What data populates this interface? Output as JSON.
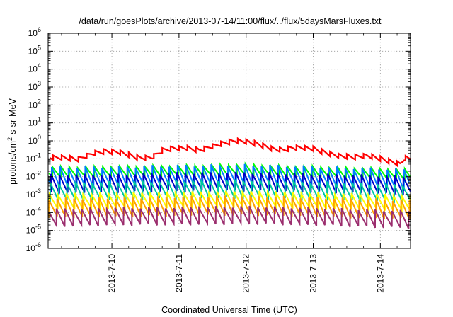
{
  "chart_data": {
    "type": "line",
    "title": "/data/run/goesPlots/archive/2013-07-14/11:00/flux/../flux/5daysMarsFluxes.txt",
    "xlabel": "Coordinated Universal Time (UTC)",
    "ylabel": {
      "pre": "protons/cm",
      "sup": "2",
      "post": "-s-sr-MeV"
    },
    "yscale": "log",
    "ylim_exp": [
      -6,
      6
    ],
    "yticks": [
      {
        "base": "10",
        "exp": "-6"
      },
      {
        "base": "10",
        "exp": "-5"
      },
      {
        "base": "10",
        "exp": "-4"
      },
      {
        "base": "10",
        "exp": "-3"
      },
      {
        "base": "10",
        "exp": "-2"
      },
      {
        "base": "10",
        "exp": "-1"
      },
      {
        "base": "10",
        "exp": "0"
      },
      {
        "base": "10",
        "exp": "1"
      },
      {
        "base": "10",
        "exp": "2"
      },
      {
        "base": "10",
        "exp": "3"
      },
      {
        "base": "10",
        "exp": "4"
      },
      {
        "base": "10",
        "exp": "5"
      },
      {
        "base": "10",
        "exp": "6"
      }
    ],
    "xlim_days": [
      9.05,
      14.45
    ],
    "xticks": [
      {
        "label": "2013-7-10",
        "day": 10
      },
      {
        "label": "2013-7-11",
        "day": 11
      },
      {
        "label": "2013-7-12",
        "day": 12
      },
      {
        "label": "2013-7-13",
        "day": 13
      },
      {
        "label": "2013-7-14",
        "day": 14
      }
    ],
    "grid": true,
    "series": [
      {
        "color": "#ff0000",
        "width": 2.2,
        "keypoints": [
          [
            9.05,
            -0.92
          ],
          [
            9.3,
            -0.95
          ],
          [
            9.5,
            -1.02
          ],
          [
            9.7,
            -0.72
          ],
          [
            9.9,
            -0.58
          ],
          [
            10.1,
            -0.62
          ],
          [
            10.4,
            -0.95
          ],
          [
            10.6,
            -0.92
          ],
          [
            10.75,
            -0.55
          ],
          [
            10.9,
            -0.42
          ],
          [
            11.1,
            -0.4
          ],
          [
            11.3,
            -0.52
          ],
          [
            11.5,
            -0.3
          ],
          [
            11.7,
            -0.1
          ],
          [
            11.85,
            0.02
          ],
          [
            12.0,
            -0.05
          ],
          [
            12.2,
            -0.2
          ],
          [
            12.4,
            -0.45
          ],
          [
            12.55,
            -0.52
          ],
          [
            12.7,
            -0.38
          ],
          [
            12.85,
            -0.38
          ],
          [
            13.0,
            -0.45
          ],
          [
            13.25,
            -0.72
          ],
          [
            13.4,
            -0.85
          ],
          [
            13.6,
            -0.9
          ],
          [
            13.8,
            -0.82
          ],
          [
            14.0,
            -1.0
          ],
          [
            14.2,
            -1.2
          ],
          [
            14.3,
            -1.3
          ],
          [
            14.36,
            -0.98
          ],
          [
            14.45,
            -1.0
          ]
        ],
        "sawtooth": 0.3,
        "period": 0.125
      },
      {
        "color": "#00ff00",
        "width": 2.0,
        "keypoints": [
          [
            9.05,
            -1.75
          ],
          [
            9.5,
            -1.78
          ],
          [
            10.5,
            -1.72
          ],
          [
            11.5,
            -1.68
          ],
          [
            12.0,
            -1.62
          ],
          [
            12.5,
            -1.72
          ],
          [
            13.0,
            -1.75
          ],
          [
            13.5,
            -1.82
          ],
          [
            14.0,
            -1.85
          ],
          [
            14.45,
            -1.92
          ]
        ],
        "sawtooth": 0.7,
        "period": 0.125
      },
      {
        "color": "#0080ff",
        "width": 2.0,
        "keypoints": [
          [
            9.05,
            -2.05
          ],
          [
            10.0,
            -2.02
          ],
          [
            11.0,
            -1.95
          ],
          [
            12.0,
            -1.92
          ],
          [
            13.0,
            -2.0
          ],
          [
            13.5,
            -2.08
          ],
          [
            14.0,
            -2.12
          ],
          [
            14.45,
            -2.2
          ]
        ],
        "sawtooth": 1.25,
        "period": 0.125
      },
      {
        "color": "#0000c8",
        "width": 2.0,
        "keypoints": [
          [
            9.05,
            -2.4
          ],
          [
            10.0,
            -2.38
          ],
          [
            11.0,
            -2.3
          ],
          [
            12.0,
            -2.28
          ],
          [
            13.0,
            -2.35
          ],
          [
            14.0,
            -2.45
          ],
          [
            14.45,
            -2.5
          ]
        ],
        "sawtooth": 1.1,
        "period": 0.125
      },
      {
        "color": "#00c8a0",
        "width": 2.0,
        "keypoints": [
          [
            9.05,
            -2.85
          ],
          [
            10.0,
            -2.8
          ],
          [
            11.0,
            -2.72
          ],
          [
            12.0,
            -2.7
          ],
          [
            13.0,
            -2.8
          ],
          [
            14.0,
            -2.9
          ],
          [
            14.45,
            -2.95
          ]
        ],
        "sawtooth": 1.1,
        "period": 0.125
      },
      {
        "color": "#ffff00",
        "width": 2.0,
        "keypoints": [
          [
            9.05,
            -3.4
          ],
          [
            10.0,
            -3.35
          ],
          [
            11.0,
            -3.3
          ],
          [
            12.0,
            -3.25
          ],
          [
            13.0,
            -3.35
          ],
          [
            14.0,
            -3.42
          ],
          [
            14.45,
            -3.5
          ]
        ],
        "sawtooth": 0.95,
        "period": 0.125
      },
      {
        "color": "#ffa000",
        "width": 2.0,
        "keypoints": [
          [
            9.05,
            -3.75
          ],
          [
            10.0,
            -3.72
          ],
          [
            11.0,
            -3.65
          ],
          [
            12.0,
            -3.6
          ],
          [
            13.0,
            -3.7
          ],
          [
            14.0,
            -3.8
          ],
          [
            14.45,
            -3.85
          ]
        ],
        "sawtooth": 1.15,
        "period": 0.125
      },
      {
        "color": "#9b2e6e",
        "width": 2.0,
        "keypoints": [
          [
            9.05,
            -4.3
          ],
          [
            10.0,
            -4.22
          ],
          [
            11.0,
            -4.2
          ],
          [
            12.0,
            -4.15
          ],
          [
            13.0,
            -4.22
          ],
          [
            14.0,
            -4.35
          ],
          [
            14.45,
            -4.4
          ]
        ],
        "sawtooth": 1.05,
        "period": 0.125
      }
    ]
  }
}
